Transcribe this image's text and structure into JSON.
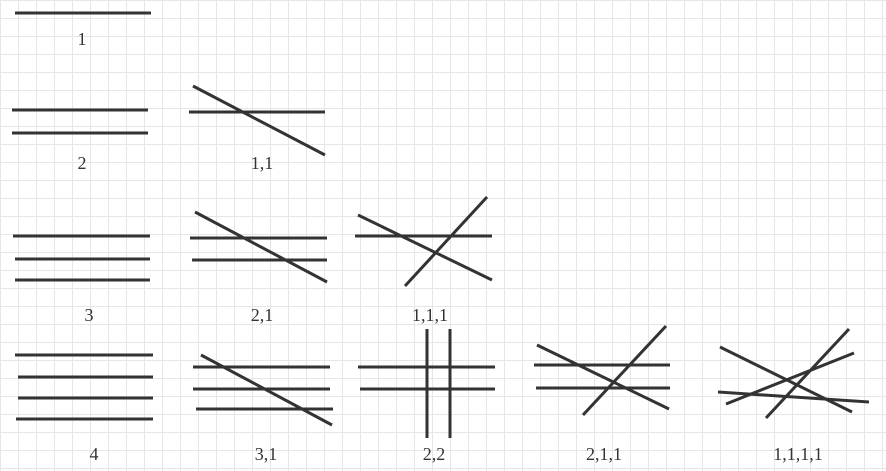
{
  "diagram": {
    "line_color": "#333333",
    "grid_color": "#e6e6e6",
    "configurations": [
      {
        "label": "1"
      },
      {
        "label": "2"
      },
      {
        "label": "1,1"
      },
      {
        "label": "3"
      },
      {
        "label": "2,1"
      },
      {
        "label": "1,1,1"
      },
      {
        "label": "4"
      },
      {
        "label": "3,1"
      },
      {
        "label": "2,2"
      },
      {
        "label": "2,1,1"
      },
      {
        "label": "1,1,1,1"
      }
    ]
  }
}
